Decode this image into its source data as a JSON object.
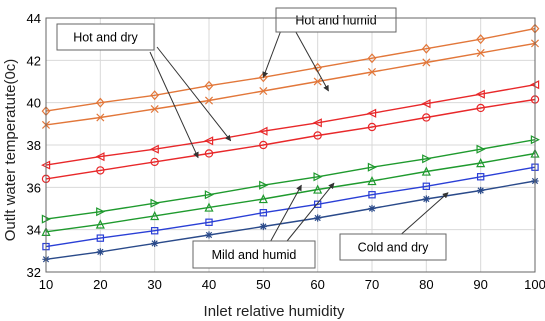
{
  "chart_data": {
    "type": "line",
    "xlabel": "Inlet relative humidity",
    "ylabel": "Outlt water temperatute(0c)",
    "xlim": [
      10,
      100
    ],
    "ylim": [
      32,
      44
    ],
    "x_ticks": [
      "10",
      "20",
      "30",
      "40",
      "50",
      "60",
      "70",
      "80",
      "90",
      "100"
    ],
    "y_ticks": [
      "32",
      "34",
      "36",
      "38",
      "40",
      "42",
      "44"
    ],
    "grid": true,
    "x": [
      10,
      20,
      30,
      40,
      50,
      60,
      70,
      80,
      90,
      100
    ],
    "series": [
      {
        "color": "#e2773a",
        "marker": "diamond",
        "values": [
          39.6,
          40.0,
          40.35,
          40.8,
          41.2,
          41.65,
          42.1,
          42.55,
          43.0,
          43.5
        ]
      },
      {
        "color": "#e2773a",
        "marker": "x",
        "values": [
          38.95,
          39.3,
          39.7,
          40.1,
          40.55,
          41.0,
          41.45,
          41.9,
          42.35,
          42.8
        ]
      },
      {
        "color": "#e8282a",
        "marker": "triangle-left",
        "values": [
          37.05,
          37.45,
          37.8,
          38.2,
          38.65,
          39.05,
          39.5,
          39.95,
          40.4,
          40.85
        ]
      },
      {
        "color": "#e8282a",
        "marker": "circle",
        "values": [
          36.4,
          36.8,
          37.2,
          37.6,
          38.0,
          38.45,
          38.85,
          39.3,
          39.75,
          40.15
        ]
      },
      {
        "color": "#1f9a2e",
        "marker": "triangle-right",
        "values": [
          34.5,
          34.85,
          35.25,
          35.65,
          36.1,
          36.5,
          36.95,
          37.35,
          37.8,
          38.25
        ]
      },
      {
        "color": "#1f9a2e",
        "marker": "triangle-up",
        "values": [
          33.9,
          34.25,
          34.65,
          35.05,
          35.45,
          35.9,
          36.3,
          36.75,
          37.15,
          37.6
        ]
      },
      {
        "color": "#2a3fd6",
        "marker": "square",
        "values": [
          33.2,
          33.6,
          33.95,
          34.35,
          34.8,
          35.2,
          35.65,
          36.05,
          36.5,
          36.95
        ]
      },
      {
        "color": "#2a4a8a",
        "marker": "star",
        "values": [
          32.6,
          32.95,
          33.35,
          33.75,
          34.15,
          34.55,
          35.0,
          35.45,
          35.85,
          36.3
        ]
      }
    ],
    "annotations": [
      {
        "text": "Hot and humid"
      },
      {
        "text": "Hot and dry"
      },
      {
        "text": "Mild and humid"
      },
      {
        "text": "Cold and dry"
      }
    ]
  }
}
